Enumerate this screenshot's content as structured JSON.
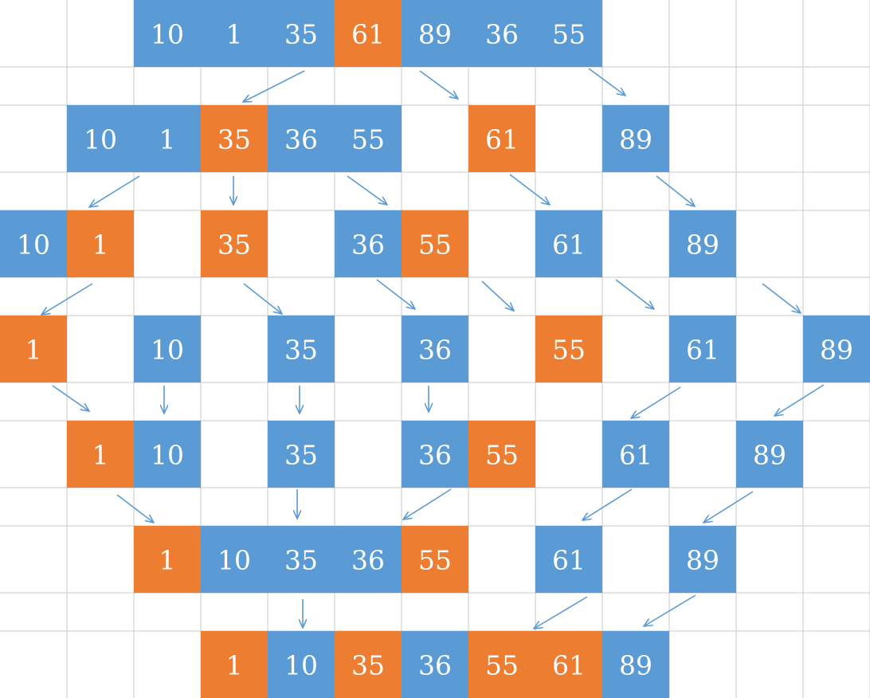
{
  "colors": {
    "background": "#ffffff",
    "grid": "#c8c8c8",
    "blue": "#5b9bd5",
    "orange": "#ed7d31",
    "text": "#ffffff",
    "arrow": "#5b9bd5"
  },
  "rows": [
    {
      "cells": [
        {
          "col": 2,
          "value": "10",
          "color": "blue"
        },
        {
          "col": 3,
          "value": "1",
          "color": "blue"
        },
        {
          "col": 4,
          "value": "35",
          "color": "blue"
        },
        {
          "col": 5,
          "value": "61",
          "color": "orange"
        },
        {
          "col": 6,
          "value": "89",
          "color": "blue"
        },
        {
          "col": 7,
          "value": "36",
          "color": "blue"
        },
        {
          "col": 8,
          "value": "55",
          "color": "blue"
        }
      ]
    },
    {
      "cells": [
        {
          "col": 1,
          "value": "10",
          "color": "blue"
        },
        {
          "col": 2,
          "value": "1",
          "color": "blue"
        },
        {
          "col": 3,
          "value": "35",
          "color": "orange"
        },
        {
          "col": 4,
          "value": "36",
          "color": "blue"
        },
        {
          "col": 5,
          "value": "55",
          "color": "blue"
        },
        {
          "col": 7,
          "value": "61",
          "color": "orange"
        },
        {
          "col": 9,
          "value": "89",
          "color": "blue"
        }
      ]
    },
    {
      "cells": [
        {
          "col": 0,
          "value": "10",
          "color": "blue"
        },
        {
          "col": 1,
          "value": "1",
          "color": "orange"
        },
        {
          "col": 3,
          "value": "35",
          "color": "orange"
        },
        {
          "col": 5,
          "value": "36",
          "color": "blue"
        },
        {
          "col": 6,
          "value": "55",
          "color": "orange"
        },
        {
          "col": 8,
          "value": "61",
          "color": "blue"
        },
        {
          "col": 10,
          "value": "89",
          "color": "blue"
        }
      ]
    },
    {
      "cells": [
        {
          "col": 0,
          "value": "1",
          "color": "orange"
        },
        {
          "col": 2,
          "value": "10",
          "color": "blue"
        },
        {
          "col": 4,
          "value": "35",
          "color": "blue"
        },
        {
          "col": 6,
          "value": "36",
          "color": "blue"
        },
        {
          "col": 8,
          "value": "55",
          "color": "orange"
        },
        {
          "col": 10,
          "value": "61",
          "color": "blue"
        },
        {
          "col": 12,
          "value": "89",
          "color": "blue"
        }
      ]
    },
    {
      "cells": [
        {
          "col": 1,
          "value": "1",
          "color": "orange"
        },
        {
          "col": 2,
          "value": "10",
          "color": "blue"
        },
        {
          "col": 4,
          "value": "35",
          "color": "blue"
        },
        {
          "col": 6,
          "value": "36",
          "color": "blue"
        },
        {
          "col": 7,
          "value": "55",
          "color": "orange"
        },
        {
          "col": 9,
          "value": "61",
          "color": "blue"
        },
        {
          "col": 11,
          "value": "89",
          "color": "blue"
        }
      ]
    },
    {
      "cells": [
        {
          "col": 2,
          "value": "1",
          "color": "orange"
        },
        {
          "col": 3,
          "value": "10",
          "color": "blue"
        },
        {
          "col": 4,
          "value": "35",
          "color": "blue"
        },
        {
          "col": 5,
          "value": "36",
          "color": "blue"
        },
        {
          "col": 6,
          "value": "55",
          "color": "orange"
        },
        {
          "col": 8,
          "value": "61",
          "color": "blue"
        },
        {
          "col": 10,
          "value": "89",
          "color": "blue"
        }
      ]
    },
    {
      "cells": [
        {
          "col": 3,
          "value": "1",
          "color": "orange"
        },
        {
          "col": 4,
          "value": "10",
          "color": "blue"
        },
        {
          "col": 5,
          "value": "35",
          "color": "orange"
        },
        {
          "col": 6,
          "value": "36",
          "color": "blue"
        },
        {
          "col": 7,
          "value": "55",
          "color": "orange"
        },
        {
          "col": 8,
          "value": "61",
          "color": "orange"
        },
        {
          "col": 9,
          "value": "89",
          "color": "blue"
        }
      ]
    }
  ]
}
